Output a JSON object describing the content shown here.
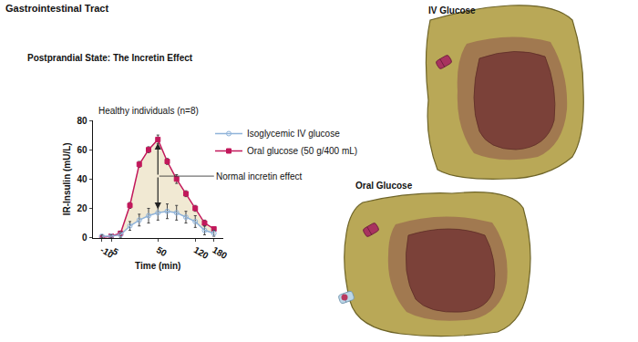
{
  "header": {
    "title": "Gastrointestinal Tract",
    "subtitle": "Postprandial State: The Incretin Effect"
  },
  "panels": {
    "iv": "IV Glucose",
    "oral": "Oral Glucose"
  },
  "chart_data": {
    "type": "line",
    "subtitle": "Healthy individuals (n=8)",
    "annotation": "Normal incretin effect",
    "x_label": "Time (min)",
    "y_label": "IR-Insulin (mU/L)",
    "categories": [
      "-10",
      "-5",
      null,
      null,
      null,
      null,
      "50",
      null,
      null,
      null,
      "120",
      null,
      "180"
    ],
    "series": [
      {
        "name": "Oral glucose (50 g/400 mL)",
        "color": "#c2185b",
        "marker": "square",
        "values": [
          0,
          1,
          3,
          22,
          50,
          60,
          67,
          52,
          40,
          30,
          20,
          10,
          6
        ],
        "error": [
          1,
          1,
          1,
          2,
          2,
          2,
          3,
          2,
          3,
          2,
          2,
          2,
          1
        ]
      },
      {
        "name": "Isoglycemic IV glucose",
        "color": "#8fb3d9",
        "marker": "circle-open",
        "values": [
          1,
          1,
          2,
          8,
          12,
          15,
          17,
          18,
          17,
          14,
          11,
          5,
          3
        ],
        "error": [
          1,
          1,
          2,
          3,
          4,
          5,
          5,
          5,
          5,
          4,
          4,
          3,
          2
        ]
      }
    ],
    "ylim": [
      0,
      80
    ],
    "yticks": [
      0,
      20,
      40,
      60,
      80
    ],
    "grid": false,
    "legend": "upper right"
  }
}
